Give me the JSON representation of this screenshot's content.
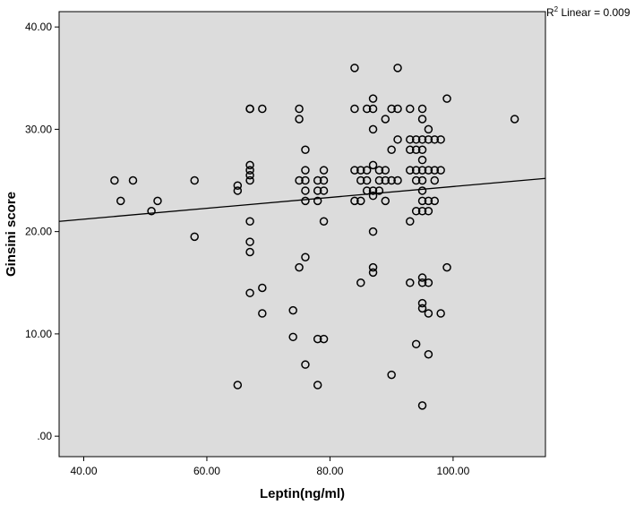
{
  "chart_data": {
    "type": "scatter",
    "xlabel": "Leptin(ng/ml)",
    "ylabel": "Ginsini score",
    "xlim": [
      36,
      115
    ],
    "ylim": [
      -2,
      41.5
    ],
    "x_ticks": [
      40,
      60,
      80,
      100
    ],
    "x_tick_labels": [
      "40.00",
      "60.00",
      "80.00",
      "100.00"
    ],
    "y_ticks": [
      0,
      10,
      20,
      30,
      40
    ],
    "y_tick_labels": [
      ".00",
      "10.00",
      "20.00",
      "30.00",
      "40.00"
    ],
    "fit_line": {
      "type": "linear",
      "x": [
        36,
        115
      ],
      "y": [
        21.0,
        25.2
      ]
    },
    "r2_label": {
      "prefix": "R",
      "sup": "2",
      "text": " Linear = 0.009"
    },
    "background": "#dcdcdc",
    "marker_color": "#000000",
    "points": [
      [
        45,
        25
      ],
      [
        46,
        23
      ],
      [
        48,
        25
      ],
      [
        51,
        22
      ],
      [
        52,
        23
      ],
      [
        58,
        25
      ],
      [
        58,
        19.5
      ],
      [
        65,
        24.5
      ],
      [
        65,
        24
      ],
      [
        65,
        5
      ],
      [
        67,
        32
      ],
      [
        67,
        32
      ],
      [
        67,
        26.5
      ],
      [
        67,
        26
      ],
      [
        67,
        25.5
      ],
      [
        67,
        25
      ],
      [
        67,
        21
      ],
      [
        67,
        19
      ],
      [
        67,
        18
      ],
      [
        67,
        14
      ],
      [
        69,
        32
      ],
      [
        69,
        14.5
      ],
      [
        69,
        12
      ],
      [
        74,
        12.3
      ],
      [
        74,
        9.7
      ],
      [
        75,
        32
      ],
      [
        75,
        31
      ],
      [
        75,
        25
      ],
      [
        75,
        16.5
      ],
      [
        76,
        28
      ],
      [
        76,
        26
      ],
      [
        76,
        25
      ],
      [
        76,
        24
      ],
      [
        76,
        23
      ],
      [
        76,
        17.5
      ],
      [
        76,
        7
      ],
      [
        78,
        25
      ],
      [
        78,
        24
      ],
      [
        78,
        23
      ],
      [
        78,
        9.5
      ],
      [
        78,
        5
      ],
      [
        79,
        26
      ],
      [
        79,
        25
      ],
      [
        79,
        24
      ],
      [
        79,
        21
      ],
      [
        79,
        9.5
      ],
      [
        84,
        36
      ],
      [
        84,
        32
      ],
      [
        84,
        26
      ],
      [
        84,
        23
      ],
      [
        85,
        26
      ],
      [
        85,
        25
      ],
      [
        85,
        23
      ],
      [
        85,
        15
      ],
      [
        86,
        32
      ],
      [
        86,
        26
      ],
      [
        86,
        25
      ],
      [
        86,
        24
      ],
      [
        87,
        33
      ],
      [
        87,
        32
      ],
      [
        87,
        30
      ],
      [
        87,
        26.5
      ],
      [
        87,
        24
      ],
      [
        87,
        23.5
      ],
      [
        87,
        20
      ],
      [
        87,
        16.5
      ],
      [
        87,
        16
      ],
      [
        88,
        26
      ],
      [
        88,
        25
      ],
      [
        88,
        24
      ],
      [
        89,
        31
      ],
      [
        89,
        26
      ],
      [
        89,
        25
      ],
      [
        89,
        23
      ],
      [
        90,
        32
      ],
      [
        90,
        28
      ],
      [
        90,
        25
      ],
      [
        90,
        6
      ],
      [
        91,
        36
      ],
      [
        91,
        32
      ],
      [
        91,
        29
      ],
      [
        91,
        25
      ],
      [
        93,
        32
      ],
      [
        93,
        29
      ],
      [
        93,
        28
      ],
      [
        93,
        26
      ],
      [
        93,
        21
      ],
      [
        93,
        15
      ],
      [
        94,
        29
      ],
      [
        94,
        28
      ],
      [
        94,
        26
      ],
      [
        94,
        25
      ],
      [
        94,
        22
      ],
      [
        94,
        9
      ],
      [
        95,
        32
      ],
      [
        95,
        31
      ],
      [
        95,
        29
      ],
      [
        95,
        28
      ],
      [
        95,
        27
      ],
      [
        95,
        26
      ],
      [
        95,
        25
      ],
      [
        95,
        24
      ],
      [
        95,
        23
      ],
      [
        95,
        22
      ],
      [
        95,
        15.5
      ],
      [
        95,
        15
      ],
      [
        95,
        13
      ],
      [
        95,
        12.5
      ],
      [
        95,
        3
      ],
      [
        96,
        30
      ],
      [
        96,
        29
      ],
      [
        96,
        26
      ],
      [
        96,
        23
      ],
      [
        96,
        22
      ],
      [
        96,
        15
      ],
      [
        96,
        12
      ],
      [
        96,
        8
      ],
      [
        97,
        29
      ],
      [
        97,
        26
      ],
      [
        97,
        25
      ],
      [
        97,
        23
      ],
      [
        98,
        29
      ],
      [
        98,
        26
      ],
      [
        98,
        12
      ],
      [
        99,
        33
      ],
      [
        99,
        16.5
      ],
      [
        110,
        31
      ]
    ]
  }
}
